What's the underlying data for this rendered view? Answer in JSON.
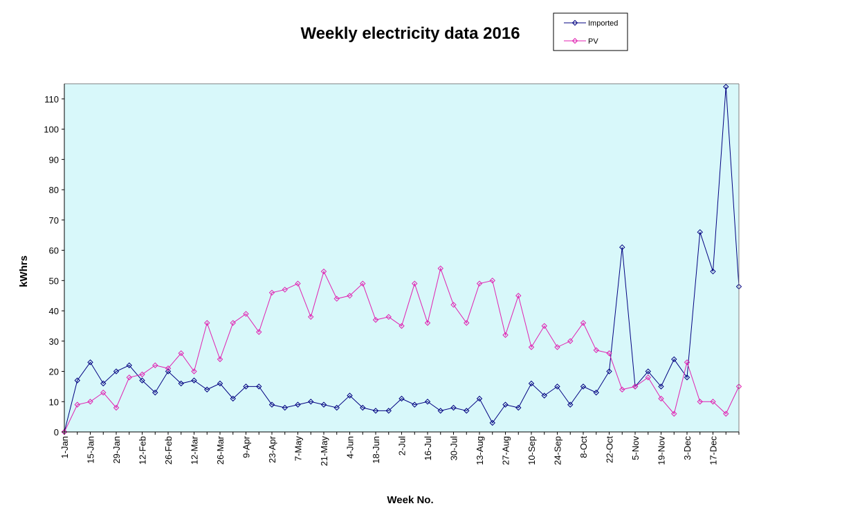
{
  "chart_data": {
    "type": "line",
    "title": "Weekly electricity data 2016",
    "xlabel": "Week No.",
    "ylabel": "kWhrs",
    "ylim": [
      0,
      115
    ],
    "yticks": [
      0,
      10,
      20,
      30,
      40,
      50,
      60,
      70,
      80,
      90,
      100,
      110
    ],
    "grid": false,
    "legend_position": "top-right",
    "plot_background": "#D8F8FA",
    "x_tick_labels": [
      "1-Jan",
      "15-Jan",
      "29-Jan",
      "12-Feb",
      "26-Feb",
      "12-Mar",
      "26-Mar",
      "9-Apr",
      "23-Apr",
      "7-May",
      "21-May",
      "4-Jun",
      "18-Jun",
      "2-Jul",
      "16-Jul",
      "30-Jul",
      "13-Aug",
      "27-Aug",
      "10-Sep",
      "24-Sep",
      "8-Oct",
      "22-Oct",
      "5-Nov",
      "19-Nov",
      "3-Dec",
      "17-Dec"
    ],
    "x_tick_weeks": [
      0,
      2,
      4,
      6,
      8,
      10,
      12,
      14,
      16,
      18,
      20,
      22,
      24,
      26,
      28,
      30,
      32,
      34,
      36,
      38,
      40,
      42,
      44,
      46,
      48,
      50
    ],
    "x": [
      0,
      1,
      2,
      3,
      4,
      5,
      6,
      7,
      8,
      9,
      10,
      11,
      12,
      13,
      14,
      15,
      16,
      17,
      18,
      19,
      20,
      21,
      22,
      23,
      24,
      25,
      26,
      27,
      28,
      29,
      30,
      31,
      32,
      33,
      34,
      35,
      36,
      37,
      38,
      39,
      40,
      41,
      42,
      43,
      44,
      45,
      46,
      47,
      48,
      49,
      50,
      51,
      52
    ],
    "series": [
      {
        "name": "Imported",
        "color": "#000080",
        "values": [
          0,
          17,
          23,
          16,
          20,
          22,
          17,
          13,
          20,
          16,
          17,
          14,
          16,
          11,
          15,
          15,
          9,
          8,
          9,
          10,
          9,
          8,
          12,
          8,
          7,
          7,
          11,
          9,
          10,
          7,
          8,
          7,
          11,
          3,
          9,
          8,
          16,
          12,
          15,
          9,
          15,
          13,
          20,
          61,
          15,
          20,
          15,
          24,
          18,
          66,
          53,
          114,
          48
        ]
      },
      {
        "name": "PV",
        "color": "#E020B0",
        "values": [
          0,
          9,
          10,
          13,
          8,
          18,
          19,
          22,
          21,
          26,
          20,
          36,
          24,
          36,
          39,
          33,
          46,
          47,
          49,
          38,
          53,
          44,
          45,
          49,
          37,
          38,
          35,
          49,
          36,
          54,
          42,
          36,
          49,
          50,
          32,
          45,
          28,
          35,
          28,
          30,
          36,
          27,
          26,
          14,
          15,
          18,
          11,
          6,
          23,
          10,
          10,
          6,
          15
        ]
      }
    ]
  }
}
